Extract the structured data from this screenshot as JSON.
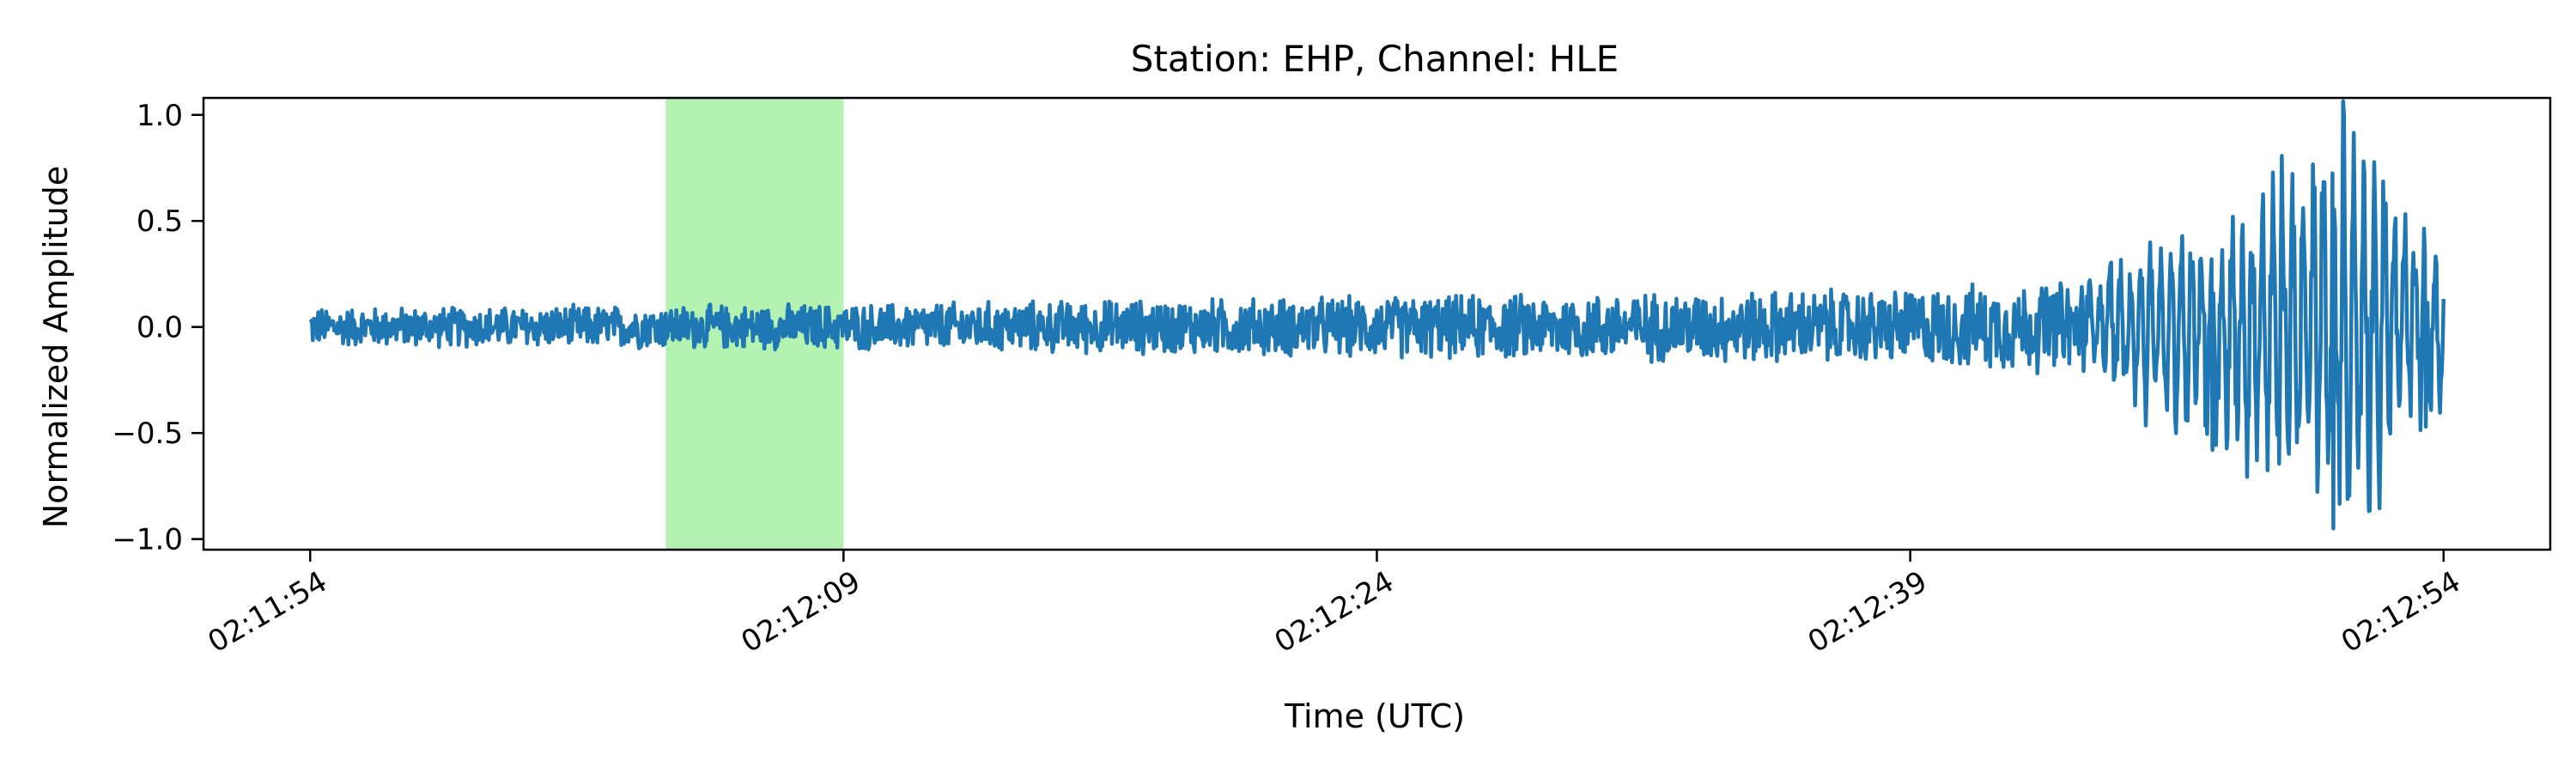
{
  "chart_data": {
    "type": "line",
    "title": "Station: EHP, Channel: HLE",
    "xlabel": "Time (UTC)",
    "ylabel": "Normalized Amplitude",
    "x_start": "02:11:54",
    "x_end": "02:12:54",
    "xlim": [
      "02:11:51",
      "02:12:57"
    ],
    "ylim": [
      -1.05,
      1.08
    ],
    "x_ticks": [
      "02:11:54",
      "02:12:09",
      "02:12:24",
      "02:12:39",
      "02:12:54"
    ],
    "y_ticks": [
      -1.0,
      -0.5,
      0.0,
      0.5,
      1.0
    ],
    "y_tick_labels": [
      "−1.0",
      "−0.5",
      "0.0",
      "0.5",
      "1.0"
    ],
    "x_tick_rotation_deg": 30,
    "grid": false,
    "highlight": {
      "start": "02:12:04",
      "end": "02:12:09",
      "color": "#b3f2b0"
    },
    "series": [
      {
        "color": "#1f77b4",
        "envelope": [
          {
            "t": "02:11:54",
            "amplitude": 0.1
          },
          {
            "t": "02:12:09",
            "amplitude": 0.12
          },
          {
            "t": "02:12:24",
            "amplitude": 0.16
          },
          {
            "t": "02:12:39",
            "amplitude": 0.2
          },
          {
            "t": "02:12:44",
            "amplitude": 0.25
          },
          {
            "t": "02:12:47",
            "amplitude": 0.5
          },
          {
            "t": "02:12:51",
            "amplitude": 0.95
          },
          {
            "t": "02:12:54",
            "amplitude": 0.4
          }
        ],
        "peaks": [
          {
            "t": "02:12:51.2",
            "value": 1.0
          },
          {
            "t": "02:12:50.9",
            "value": -0.95
          },
          {
            "t": "02:12:47.5",
            "value": -0.58
          },
          {
            "t": "02:12:53.5",
            "value": -0.47
          }
        ]
      }
    ]
  }
}
